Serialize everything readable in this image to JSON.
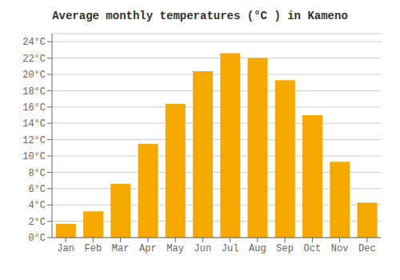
{
  "chart_data": {
    "type": "bar",
    "title": "Average monthly temperatures (°C ) in Kameno",
    "categories": [
      "Jan",
      "Feb",
      "Mar",
      "Apr",
      "May",
      "Jun",
      "Jul",
      "Aug",
      "Sep",
      "Oct",
      "Nov",
      "Dec"
    ],
    "values": [
      1.7,
      3.2,
      6.6,
      11.5,
      16.4,
      20.4,
      22.6,
      22.0,
      19.3,
      15.0,
      9.3,
      4.3
    ],
    "color": "#F5A800",
    "ylim": [
      0,
      25
    ],
    "yticks": [
      {
        "value": 0,
        "label": "0°C"
      },
      {
        "value": 2,
        "label": "2°C"
      },
      {
        "value": 4,
        "label": "4°C"
      },
      {
        "value": 6,
        "label": "6°C"
      },
      {
        "value": 8,
        "label": "8°C"
      },
      {
        "value": 10,
        "label": "10°C"
      },
      {
        "value": 12,
        "label": "12°C"
      },
      {
        "value": 14,
        "label": "14°C"
      },
      {
        "value": 16,
        "label": "16°C"
      },
      {
        "value": 18,
        "label": "18°C"
      },
      {
        "value": 20,
        "label": "20°C"
      },
      {
        "value": 22,
        "label": "22°C"
      },
      {
        "value": 24,
        "label": "24°C"
      }
    ],
    "grid": true
  }
}
